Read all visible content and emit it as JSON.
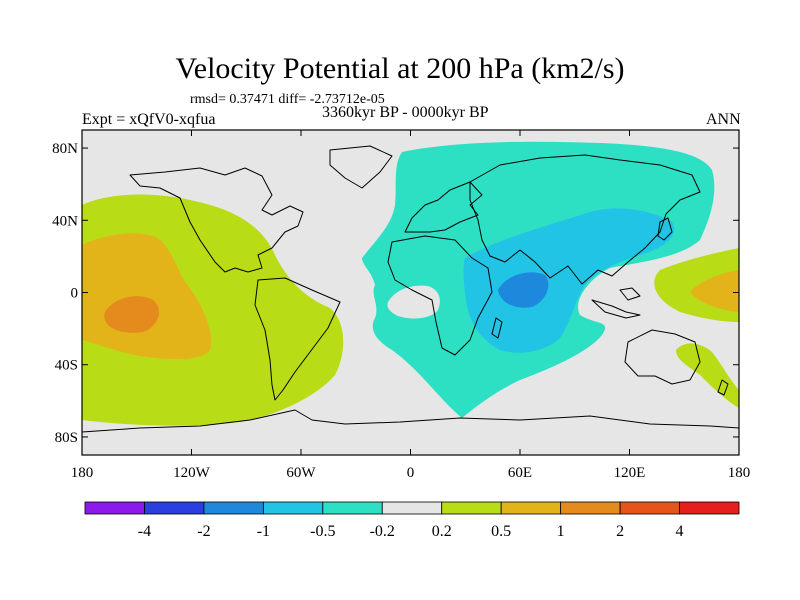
{
  "header": {
    "title": "Velocity Potential at 200 hPa (km2/s)",
    "stats": "rmsd= 0.37471 diff= -2.73712e-05",
    "period": "3360kyr BP - 0000kyr BP",
    "experiment": "Expt = xQfV0-xqfua",
    "season": "ANN"
  },
  "chart_data": {
    "type": "heatmap",
    "title": "Velocity Potential at 200 hPa (km2/s)",
    "xlabel": "",
    "ylabel": "",
    "projection": "cylindrical equidistant",
    "xlim": [
      -180,
      180
    ],
    "ylim": [
      -90,
      90
    ],
    "x_ticks": [
      -180,
      -120,
      -60,
      0,
      60,
      120,
      180
    ],
    "x_tick_labels": [
      "180",
      "120W",
      "60W",
      "0",
      "60E",
      "120E",
      "180"
    ],
    "y_ticks": [
      80,
      40,
      0,
      -40,
      -80
    ],
    "y_tick_labels": [
      "80N",
      "40N",
      "0",
      "40S",
      "80S"
    ],
    "colorbar": {
      "levels": [
        -4,
        -2,
        -1,
        -0.5,
        -0.2,
        0.2,
        0.5,
        1,
        2,
        4
      ],
      "labels": [
        "-4",
        "-2",
        "-1",
        "-0.5",
        "-0.2",
        "0.2",
        "0.5",
        "1",
        "2",
        "4"
      ],
      "colors": [
        "#8c1aeb",
        "#2b3fe0",
        "#1e88dc",
        "#22c4e6",
        "#2de0c4",
        "#e6e6e6",
        "#b8dc16",
        "#e3b31a",
        "#e58a1c",
        "#e5551a",
        "#e51e1e"
      ]
    },
    "regions": [
      {
        "name": "central-pacific-positive",
        "level_range": [
          0.2,
          0.5
        ],
        "center_lon": -145,
        "center_lat": 0
      },
      {
        "name": "central-pacific-core",
        "level_range": [
          0.5,
          1
        ],
        "center_lon": -160,
        "center_lat": 5
      },
      {
        "name": "central-pacific-max",
        "level_range": [
          1,
          2
        ],
        "center_lon": -162,
        "center_lat": -8
      },
      {
        "name": "eastern-hemisphere-negative",
        "level_range": [
          -0.5,
          -0.2
        ],
        "center_lon": 60,
        "center_lat": 25
      },
      {
        "name": "indian-ocean-negative",
        "level_range": [
          -1,
          -0.5
        ],
        "center_lon": 65,
        "center_lat": 5
      },
      {
        "name": "indian-ocean-min",
        "level_range": [
          -2,
          -1
        ],
        "center_lon": 58,
        "center_lat": 5
      },
      {
        "name": "west-pacific-positive",
        "level_range": [
          0.2,
          0.5
        ],
        "center_lon": 155,
        "center_lat": 0
      },
      {
        "name": "west-pacific-core",
        "level_range": [
          0.5,
          1
        ],
        "center_lon": 165,
        "center_lat": 0
      }
    ]
  }
}
